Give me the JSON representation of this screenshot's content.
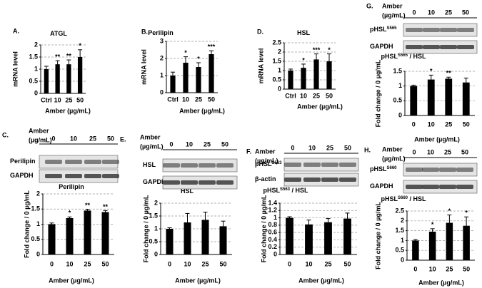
{
  "chart_data": [
    {
      "type": "bar",
      "label": "A.",
      "title": [
        {
          "text": "ATGL"
        }
      ],
      "ylabel": "mRNA level",
      "xlabel": "Amber (µg/mL)",
      "categories": [
        "Ctrl",
        "10",
        "25",
        "50"
      ],
      "values": [
        1.0,
        1.2,
        1.2,
        1.5
      ],
      "errors": [
        0.12,
        0.15,
        0.18,
        0.3
      ],
      "annotations": [
        null,
        "**",
        "**",
        "*"
      ],
      "ylim": [
        0,
        2
      ],
      "yticks": [
        0,
        0.5,
        1,
        1.5,
        2
      ],
      "color": "#000000",
      "grid": true
    },
    {
      "type": "bar",
      "label": "B.",
      "title": [
        {
          "text": "Perilipin"
        }
      ],
      "ylabel": "mRNA level",
      "xlabel": "Amber (µg/mL)",
      "categories": [
        "Ctrl",
        "10",
        "25",
        "50"
      ],
      "values": [
        1.0,
        1.75,
        1.5,
        2.25
      ],
      "errors": [
        0.2,
        0.35,
        0.25,
        0.2
      ],
      "annotations": [
        null,
        "*",
        "*",
        "***"
      ],
      "ylim": [
        0,
        3
      ],
      "yticks": [
        0,
        1,
        2,
        3
      ],
      "color": "#000000",
      "grid": true
    },
    {
      "type": "bar",
      "label": "D.",
      "title": [
        {
          "text": "HSL"
        }
      ],
      "ylabel": "mRNA level",
      "xlabel": "Amber (µg/mL)",
      "categories": [
        "Ctrl",
        "10",
        "25",
        "50"
      ],
      "values": [
        1.0,
        1.15,
        1.6,
        1.5
      ],
      "errors": [
        0.08,
        0.2,
        0.3,
        0.4
      ],
      "annotations": [
        null,
        "*",
        "***",
        "*"
      ],
      "ylim": [
        0,
        2.5
      ],
      "yticks": [
        0,
        0.5,
        1,
        1.5,
        2,
        2.5
      ],
      "color": "#000000",
      "grid": true
    },
    {
      "type": "bar",
      "label": "C.",
      "blot": {
        "header": [
          "Amber",
          "(µg/mL)"
        ],
        "lanes": [
          "0",
          "10",
          "25",
          "50"
        ],
        "rows": [
          [
            {
              "text": "Perilipin"
            }
          ],
          [
            {
              "text": "GAPDH"
            }
          ]
        ]
      },
      "title": [
        {
          "text": "Perilipin"
        }
      ],
      "ylabel": "Fold change / 0 µg/mL",
      "xlabel": "Amber (µg/mL)",
      "categories": [
        "0",
        "10",
        "25",
        "50"
      ],
      "values": [
        1.0,
        1.2,
        1.45,
        1.4
      ],
      "errors": [
        0.04,
        0.04,
        0.04,
        0.05
      ],
      "annotations": [
        null,
        "*",
        "**",
        "**"
      ],
      "ylim": [
        0,
        2
      ],
      "yticks": [
        0,
        0.5,
        1,
        1.5,
        2
      ],
      "color": "#000000",
      "grid": true
    },
    {
      "type": "bar",
      "label": "E.",
      "blot": {
        "header": [
          "Amber",
          "(µg/mL)"
        ],
        "lanes": [
          "0",
          "10",
          "25",
          "50"
        ],
        "rows": [
          [
            {
              "text": "HSL"
            }
          ],
          [
            {
              "text": "GAPDH"
            }
          ]
        ]
      },
      "title": [
        {
          "text": "HSL"
        }
      ],
      "ylabel": "Fold change / 0 µg/mL",
      "xlabel": "Amber (µg/mL)",
      "categories": [
        "0",
        "10",
        "25",
        "50"
      ],
      "values": [
        1.0,
        1.25,
        1.35,
        1.1
      ],
      "errors": [
        0.04,
        0.35,
        0.3,
        0.2
      ],
      "annotations": [
        null,
        null,
        null,
        null
      ],
      "ylim": [
        0,
        2
      ],
      "yticks": [
        0,
        0.5,
        1,
        1.5,
        2
      ],
      "color": "#000000",
      "grid": true
    },
    {
      "type": "bar",
      "label": "F.",
      "blot": {
        "header": [
          "Amber",
          "(µg/mL)"
        ],
        "lanes": [
          "0",
          "10",
          "25",
          "50"
        ],
        "rows": [
          [
            {
              "text": "pHSL"
            },
            {
              "text": "S563",
              "sup": true
            }
          ],
          [
            {
              "text": "β-actin"
            }
          ]
        ]
      },
      "title": [
        {
          "text": "pHSL"
        },
        {
          "text": "S563",
          "sup": true
        },
        {
          "text": " / HSL"
        }
      ],
      "ylabel": "Fold change / 0 µg/mL",
      "xlabel": "Amber (µg/mL)",
      "categories": [
        "0",
        "10",
        "25",
        "50"
      ],
      "values": [
        1.0,
        0.82,
        0.88,
        0.98
      ],
      "errors": [
        0.03,
        0.12,
        0.1,
        0.15
      ],
      "annotations": [
        null,
        null,
        null,
        null
      ],
      "ylim": [
        0,
        1.4
      ],
      "yticks": [
        0,
        0.2,
        0.4,
        0.6,
        0.8,
        1,
        1.2,
        1.4
      ],
      "color": "#000000",
      "grid": true
    },
    {
      "type": "bar",
      "label": "G.",
      "blot": {
        "header": [
          "Amber",
          "(µg/mL)"
        ],
        "lanes": [
          "0",
          "10",
          "25",
          "50"
        ],
        "rows": [
          [
            {
              "text": "pHSL"
            },
            {
              "text": "S565",
              "sup": true
            }
          ],
          [
            {
              "text": "GAPDH"
            }
          ]
        ]
      },
      "title": [
        {
          "text": "pHSL"
        },
        {
          "text": "S565",
          "sup": true
        },
        {
          "text": " / HSL"
        }
      ],
      "ylabel": "Fold change / 0 µg/mL",
      "xlabel": "Amber (µg/mL)",
      "categories": [
        "0",
        "10",
        "25",
        "50"
      ],
      "values": [
        1.0,
        1.22,
        1.25,
        1.12
      ],
      "errors": [
        0.03,
        0.15,
        0.05,
        0.15
      ],
      "annotations": [
        null,
        "*",
        "**",
        null
      ],
      "ylim": [
        0,
        1.5
      ],
      "yticks": [
        0,
        0.5,
        1,
        1.5
      ],
      "color": "#000000",
      "grid": true
    },
    {
      "type": "bar",
      "label": "H.",
      "blot": {
        "header": [
          "Amber",
          "(µg/mL)"
        ],
        "lanes": [
          "0",
          "10",
          "25",
          "50"
        ],
        "rows": [
          [
            {
              "text": "pHSL"
            },
            {
              "text": "S660",
              "sup": true
            }
          ],
          [
            {
              "text": "GAPDH"
            }
          ]
        ]
      },
      "title": [
        {
          "text": "pHSL"
        },
        {
          "text": "S660",
          "sup": true
        },
        {
          "text": " / HSL"
        }
      ],
      "ylabel": "Fold change / 0 µg/mL",
      "xlabel": "Amber (µg/mL)",
      "categories": [
        "0",
        "10",
        "25",
        "50"
      ],
      "values": [
        1.0,
        1.45,
        1.9,
        1.75
      ],
      "errors": [
        0.05,
        0.15,
        0.4,
        0.45
      ],
      "annotations": [
        null,
        "*",
        "*",
        "*"
      ],
      "ylim": [
        0,
        2.5
      ],
      "yticks": [
        0,
        0.5,
        1,
        1.5,
        2,
        2.5
      ],
      "color": "#000000",
      "grid": true
    }
  ]
}
